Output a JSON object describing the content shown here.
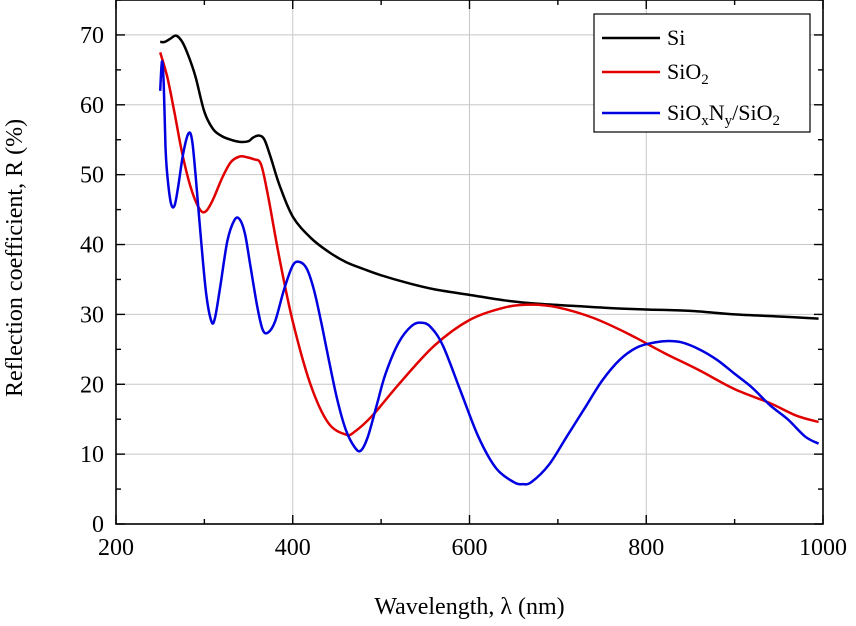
{
  "chart_data": {
    "type": "line",
    "title": "",
    "xlabel": "Wavelength, λ (nm)",
    "ylabel": "Reflection coefficient, R (%)",
    "xlim": [
      200,
      1000
    ],
    "ylim": [
      0,
      75
    ],
    "x_ticks": [
      200,
      400,
      600,
      800,
      1000
    ],
    "x_tick_labels": [
      "200",
      "400",
      "600",
      "800",
      "1000"
    ],
    "y_ticks": [
      0,
      10,
      20,
      30,
      40,
      50,
      60,
      70
    ],
    "y_tick_labels": [
      "0",
      "10",
      "20",
      "30",
      "40",
      "50",
      "60",
      "70"
    ],
    "grid": true,
    "legend_position": "top-right",
    "legend": {
      "si": {
        "label": "Si"
      },
      "sio2": {
        "base": "SiO",
        "sub": "2"
      },
      "sioxny": {
        "p1": "SiO",
        "s1": "x",
        "p2": "N",
        "s2": "y",
        "p3": "/SiO",
        "s3": "2"
      }
    },
    "series": [
      {
        "name": "Si",
        "color": "#000000",
        "x": [
          250,
          255,
          262,
          268,
          275,
          282,
          290,
          300,
          310,
          320,
          330,
          340,
          350,
          355,
          362,
          368,
          375,
          385,
          400,
          420,
          440,
          460,
          480,
          500,
          530,
          560,
          600,
          640,
          680,
          720,
          760,
          800,
          850,
          900,
          950,
          995
        ],
        "y": [
          69.0,
          69.0,
          69.5,
          69.9,
          69.0,
          67.0,
          64.0,
          59.0,
          56.5,
          55.5,
          55.0,
          54.7,
          54.8,
          55.3,
          55.6,
          55.0,
          52.5,
          48.5,
          44.0,
          41.0,
          39.0,
          37.5,
          36.5,
          35.6,
          34.5,
          33.6,
          32.8,
          32.0,
          31.5,
          31.2,
          30.9,
          30.7,
          30.5,
          30.0,
          29.7,
          29.4
        ]
      },
      {
        "name": "SiO2",
        "color": "#e00000",
        "x": [
          250,
          258,
          266,
          275,
          285,
          295,
          302,
          310,
          320,
          330,
          340,
          348,
          356,
          364,
          372,
          385,
          400,
          420,
          440,
          460,
          470,
          490,
          520,
          560,
          600,
          640,
          670,
          700,
          740,
          780,
          820,
          860,
          900,
          940,
          970,
          995
        ],
        "y": [
          67.5,
          64.0,
          59.0,
          53.0,
          48.0,
          45.0,
          44.8,
          46.5,
          49.5,
          51.8,
          52.6,
          52.5,
          52.2,
          51.5,
          47.0,
          38.0,
          29.0,
          20.0,
          14.5,
          12.8,
          13.2,
          15.5,
          20.0,
          25.5,
          29.2,
          31.0,
          31.4,
          31.0,
          29.5,
          27.2,
          24.5,
          22.0,
          19.3,
          17.3,
          15.5,
          14.6
        ]
      },
      {
        "name": "SiOxNy/SiO2",
        "color": "#0000e0",
        "x": [
          250,
          252,
          254,
          256,
          258,
          262,
          266,
          270,
          276,
          282,
          286,
          290,
          296,
          302,
          308,
          312,
          318,
          326,
          334,
          340,
          346,
          352,
          360,
          366,
          372,
          380,
          390,
          400,
          408,
          416,
          424,
          432,
          440,
          450,
          460,
          470,
          477,
          485,
          495,
          505,
          520,
          535,
          546,
          556,
          570,
          590,
          610,
          630,
          650,
          660,
          670,
          690,
          710,
          730,
          750,
          770,
          790,
          810,
          825,
          840,
          860,
          880,
          900,
          920,
          940,
          960,
          980,
          995
        ],
        "y": [
          62.0,
          66.2,
          63.0,
          54.0,
          50.0,
          46.0,
          45.5,
          48.0,
          53.0,
          55.9,
          55.0,
          50.0,
          41.0,
          33.0,
          29.0,
          29.5,
          34.0,
          40.5,
          43.5,
          43.6,
          41.5,
          37.0,
          31.0,
          27.8,
          27.4,
          29.0,
          33.5,
          37.0,
          37.5,
          36.5,
          33.5,
          29.0,
          24.0,
          18.0,
          13.5,
          11.0,
          10.5,
          12.5,
          17.0,
          21.5,
          26.0,
          28.4,
          28.8,
          28.2,
          25.5,
          19.0,
          12.5,
          8.0,
          6.0,
          5.7,
          6.0,
          8.5,
          12.5,
          16.5,
          20.5,
          23.5,
          25.3,
          26.0,
          26.2,
          26.0,
          25.0,
          23.5,
          21.5,
          19.5,
          17.0,
          15.0,
          12.5,
          11.5
        ]
      }
    ]
  }
}
